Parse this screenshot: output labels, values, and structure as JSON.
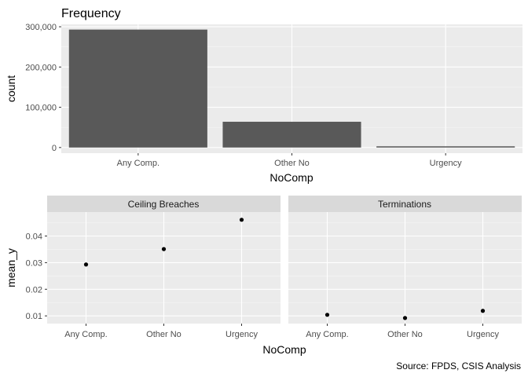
{
  "chart_data": [
    {
      "type": "bar",
      "title": "Frequency",
      "xlabel": "NoComp",
      "ylabel": "count",
      "categories": [
        "Any Comp.",
        "Other No",
        "Urgency"
      ],
      "values": [
        293000,
        64000,
        3000
      ],
      "ylim": [
        -14000,
        306000
      ],
      "yticks": [
        0,
        100000,
        200000,
        300000
      ],
      "ytick_labels": [
        "0",
        "100,000",
        "200,000",
        "300,000"
      ],
      "grid": true,
      "bar_color": "#595959",
      "panel_bg": "#ebebeb"
    },
    {
      "type": "scatter",
      "xlabel": "NoComp",
      "ylabel": "mean_y",
      "categories": [
        "Any Comp.",
        "Other No",
        "Urgency"
      ],
      "ylim": [
        0.0071,
        0.049
      ],
      "yticks": [
        0.01,
        0.02,
        0.03,
        0.04
      ],
      "ytick_labels": [
        "0.01",
        "0.02",
        "0.03",
        "0.04"
      ],
      "grid": true,
      "point_color": "#000000",
      "panel_bg": "#ebebeb",
      "strip_bg": "#d9d9d9",
      "facets": [
        {
          "name": "Ceiling Breaches",
          "values": [
            0.0293,
            0.0351,
            0.0461
          ]
        },
        {
          "name": "Terminations",
          "values": [
            0.0104,
            0.0092,
            0.0119
          ]
        }
      ]
    }
  ],
  "caption": "Source: FPDS, CSIS Analysis"
}
